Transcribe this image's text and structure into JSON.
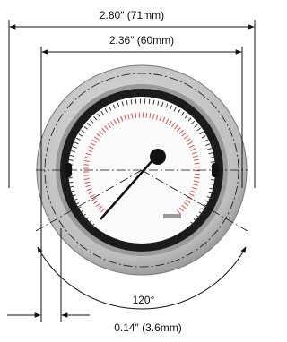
{
  "dimensions": {
    "overall_width": "2.80″ (71mm)",
    "face_width": "2.36″ (60mm)",
    "angle": "120°",
    "offset": "0.14″ (3.6mm)"
  }
}
